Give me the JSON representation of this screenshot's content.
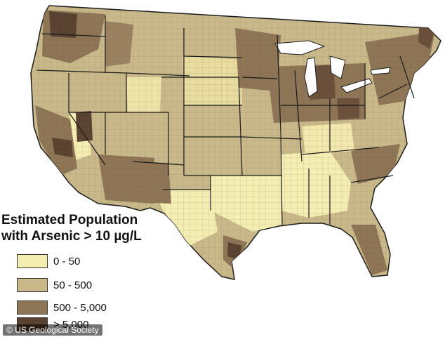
{
  "legend": {
    "title_line1": "Estimated Population",
    "title_line2": "with Arsenic > 10 µg/L",
    "items": [
      {
        "label": "0 - 50",
        "color": "#f5eeb3"
      },
      {
        "label": "50 - 500",
        "color": "#c9b98a"
      },
      {
        "label": "500 - 5,000",
        "color": "#8e7556"
      },
      {
        "label": "> 5,000",
        "color": "#5a4230"
      }
    ]
  },
  "credit": "© US Geological Society",
  "colors": {
    "state_border": "#1a1a1a",
    "county_line": "#6b5e47"
  }
}
